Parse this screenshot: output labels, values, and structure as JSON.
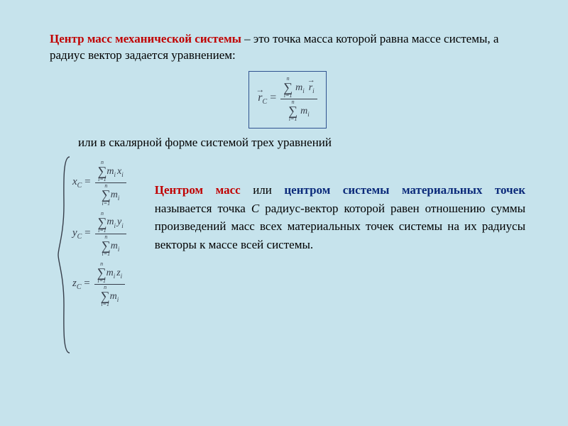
{
  "colors": {
    "background": "#c6e3ec",
    "term_red": "#c00000",
    "term_blue": "#0b2a7a",
    "text": "#000000",
    "math": "#373e4a",
    "box_border": "#2f528f"
  },
  "typography": {
    "body_font": "Times New Roman",
    "body_size_pt": 13,
    "math_style": "italic"
  },
  "intro": {
    "term": "Центр масс механической системы",
    "rest": " – это точка масса которой равна массе системы, а радиус вектор задается уравнением:"
  },
  "main_formula": {
    "lhs_var": "r",
    "lhs_sub": "C",
    "lhs_has_arrow": true,
    "sum_upper": "n",
    "sum_lower": "i=1",
    "num_term": "m_i r_i",
    "num_var1": "m",
    "num_sub1": "i",
    "num_var2": "r",
    "num_sub2": "i",
    "num_var2_has_arrow": true,
    "den_var": "m",
    "den_sub": "i"
  },
  "scalar_intro": "или в скалярной форме системой трех уравнений",
  "scalar_system": {
    "sum_upper": "n",
    "sum_lower": "i=1",
    "equations": [
      {
        "lhs_var": "x",
        "lhs_sub": "C",
        "num_var2": "x"
      },
      {
        "lhs_var": "y",
        "lhs_sub": "C",
        "num_var2": "y"
      },
      {
        "lhs_var": "z",
        "lhs_sub": "C",
        "num_var2": "z"
      }
    ],
    "num_var1": "m",
    "num_sub": "i",
    "den_var": "m",
    "den_sub": "i"
  },
  "definition": {
    "lead_red": "Центром масс",
    "mid": " или ",
    "lead_blue": "центром системы материальных точек",
    "rest1": " называется точка ",
    "point_name": "С",
    "rest2": " радиус-вектор которой равен отношению суммы произведений масс всех материальных точек системы на их радиусы векторы к массе всей системы."
  }
}
